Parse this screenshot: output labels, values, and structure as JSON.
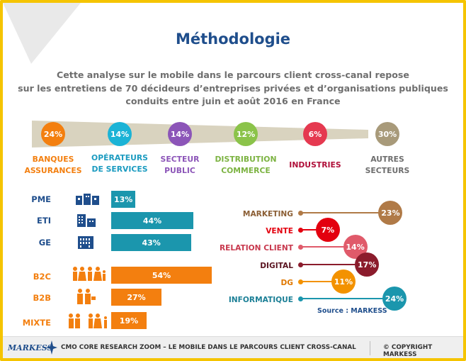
{
  "title": "Méthodologie",
  "intro_lines": [
    "Cette analyse sur le mobile dans le parcours client cross-canal repose",
    "sur les entretiens de 70 décideurs d’entreprises privées et d’organisations publiques",
    "conduits entre juin et août 2016 en France"
  ],
  "segments": [
    {
      "value": "24%",
      "line1": "BANQUES",
      "line2": "ASSURANCES",
      "color": "#f37f0f",
      "text_color": "#f37f0f"
    },
    {
      "value": "14%",
      "line1": "OPÉRATEURS",
      "line2": "DE SERVICES",
      "color": "#1bb3d6",
      "text_color": "#1b9bc0"
    },
    {
      "value": "14%",
      "line1": "SECTEUR",
      "line2": "PUBLIC",
      "color": "#8c55b8",
      "text_color": "#8c55b8"
    },
    {
      "value": "12%",
      "line1": "DISTRIBUTION",
      "line2": "COMMERCE",
      "color": "#8bc34a",
      "text_color": "#7cb342"
    },
    {
      "value": "6%",
      "line1": "INDUSTRIES",
      "line2": "",
      "color": "#e53950",
      "text_color": "#b0103a"
    },
    {
      "value": "30%",
      "line1": "AUTRES",
      "line2": "SECTEURS",
      "color": "#a89a7a",
      "text_color": "#6e6e6e"
    }
  ],
  "company_sizes": [
    {
      "label": "PME",
      "value": "13%",
      "pct": 13
    },
    {
      "label": "ETI",
      "value": "44%",
      "pct": 44
    },
    {
      "label": "GE",
      "value": "43%",
      "pct": 43
    }
  ],
  "business_models": [
    {
      "label": "B2C",
      "value": "54%",
      "pct": 54
    },
    {
      "label": "B2B",
      "value": "27%",
      "pct": 27
    },
    {
      "label": "MIXTE",
      "value": "19%",
      "pct": 19
    }
  ],
  "departments": [
    {
      "label": "MARKETING",
      "value": "23%",
      "pct": 23,
      "color": "#b07a47",
      "label_color": "#8b5e34"
    },
    {
      "label": "VENTE",
      "value": "7%",
      "pct": 7,
      "color": "#e3000f",
      "label_color": "#e3000f"
    },
    {
      "label": "RELATION CLIENT",
      "value": "14%",
      "pct": 14,
      "color": "#e05a6a",
      "label_color": "#c8384d"
    },
    {
      "label": "DIGITAL",
      "value": "17%",
      "pct": 17,
      "color": "#8b1c2c",
      "label_color": "#5a1420"
    },
    {
      "label": "DG",
      "value": "11%",
      "pct": 11,
      "color": "#f39200",
      "label_color": "#e07800"
    },
    {
      "label": "INFORMATIQUE",
      "value": "24%",
      "pct": 24,
      "color": "#1b96ad",
      "label_color": "#1b7f96"
    }
  ],
  "source": "Source : MARKESS",
  "footer": {
    "brand": "MARKESS",
    "text": "CMO CORE RESEARCH ZOOM – LE MOBILE DANS LE PARCOURS CLIENT CROSS-CANAL",
    "copyright": "© COPYRIGHT MARKESS"
  },
  "colors": {
    "title": "#1f4e8c",
    "blue_bar": "#1b96ad",
    "orange_bar": "#f37f0f",
    "frame": "#f5c400"
  }
}
